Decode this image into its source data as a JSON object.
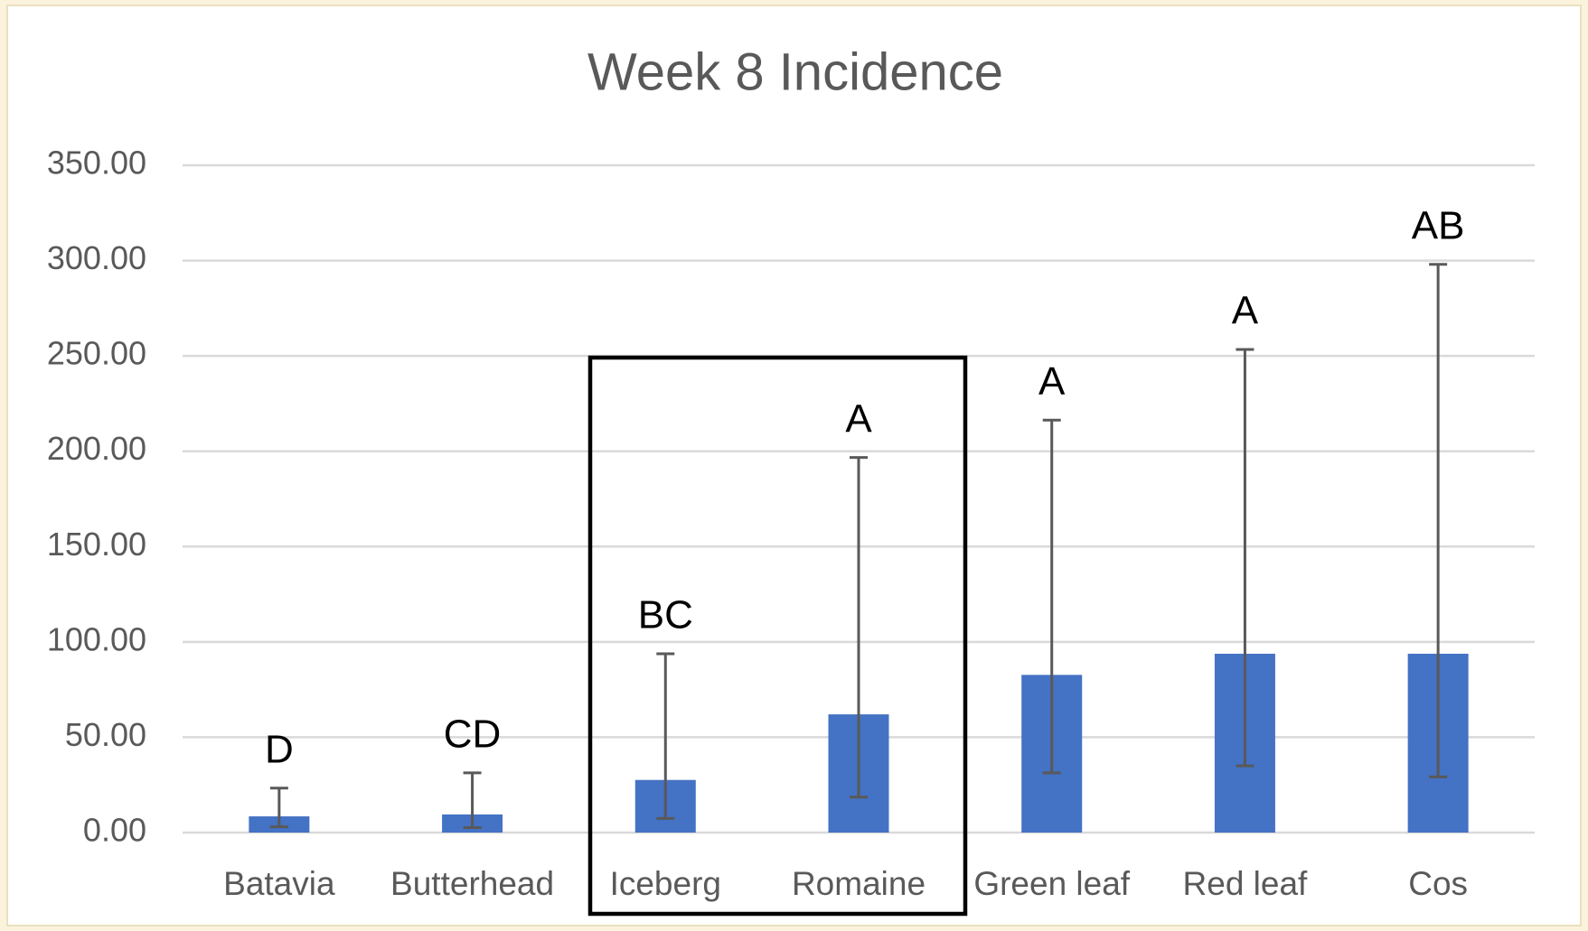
{
  "chart_data": {
    "type": "bar",
    "title": "Week 8 Incidence",
    "categories": [
      "Batavia",
      "Butterhead",
      "Iceberg",
      "Romaine",
      "Green leaf",
      "Red leaf",
      "Cos"
    ],
    "values": [
      8.5,
      9.5,
      27.6,
      62,
      82.7,
      93.8,
      93.8
    ],
    "error_plus": [
      14.8,
      21.8,
      66.2,
      134.7,
      133.6,
      159.6,
      204.2
    ],
    "error_minus": [
      5.5,
      6.9,
      20.2,
      43.4,
      51.4,
      58.8,
      64.6
    ],
    "letters": [
      "D",
      "CD",
      "BC",
      "A",
      "A",
      "A",
      "AB"
    ],
    "color": "#4472c4",
    "ylim": [
      0,
      350
    ],
    "yticks": [
      {
        "value": 0,
        "label": "0.00"
      },
      {
        "value": 50,
        "label": "50.00"
      },
      {
        "value": 100,
        "label": "100.00"
      },
      {
        "value": 150,
        "label": "150.00"
      },
      {
        "value": 200,
        "label": "200.00"
      },
      {
        "value": 250,
        "label": "250.00"
      },
      {
        "value": 300,
        "label": "300.00"
      },
      {
        "value": 350,
        "label": "350.00"
      }
    ],
    "grid": true
  }
}
